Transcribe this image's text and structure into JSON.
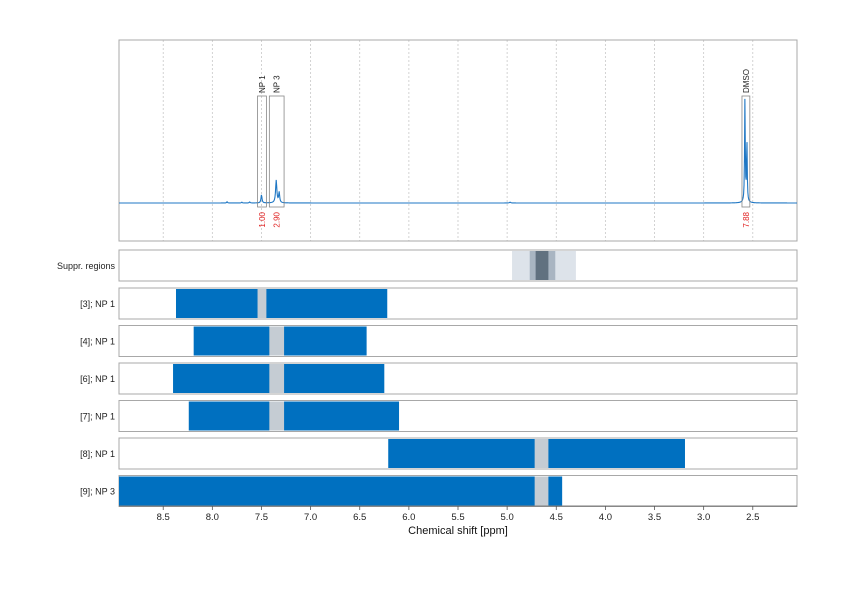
{
  "chart_data": {
    "type": "nmr-spectrum",
    "xlabel": "Chemical shift [ppm]",
    "xlim": [
      8.95,
      2.05
    ],
    "x_ticks": [
      8.5,
      8.0,
      7.5,
      7.0,
      6.5,
      6.0,
      5.5,
      5.0,
      4.5,
      4.0,
      3.5,
      3.0,
      2.5
    ],
    "x_tick_labels": [
      "8.5",
      "8.0",
      "7.5",
      "7.0",
      "6.5",
      "6.0",
      "5.5",
      "5.0",
      "4.5",
      "4.0",
      "3.5",
      "3.0",
      "2.5"
    ],
    "grid": true,
    "spectrum": {
      "baseline": 0.0,
      "peaks": [
        {
          "ppm": 7.5,
          "height": 0.08,
          "width": 0.012
        },
        {
          "ppm": 7.35,
          "height": 0.22,
          "width": 0.015
        },
        {
          "ppm": 7.32,
          "height": 0.1,
          "width": 0.012
        },
        {
          "ppm": 7.85,
          "height": 0.012,
          "width": 0.01
        },
        {
          "ppm": 7.7,
          "height": 0.008,
          "width": 0.01
        },
        {
          "ppm": 7.62,
          "height": 0.01,
          "width": 0.01
        },
        {
          "ppm": 4.97,
          "height": 0.008,
          "width": 0.015
        },
        {
          "ppm": 2.58,
          "height": 1.0,
          "width": 0.008
        },
        {
          "ppm": 2.56,
          "height": 0.6,
          "width": 0.008
        }
      ]
    },
    "regions": [
      {
        "label": "NP 1",
        "from": 7.54,
        "to": 7.45,
        "integral": "1.00"
      },
      {
        "label": "NP 3",
        "from": 7.42,
        "to": 7.27,
        "integral": "2.90"
      },
      {
        "label": "DMSO",
        "from": 2.61,
        "to": 2.53,
        "integral": "7.88"
      }
    ],
    "suppression_label": "Suppr. regions",
    "suppression_regions": [
      {
        "from": 4.95,
        "to": 4.3,
        "level": "light"
      },
      {
        "from": 4.77,
        "to": 4.51,
        "level": "medium"
      },
      {
        "from": 4.71,
        "to": 4.58,
        "level": "dark"
      }
    ],
    "rows": [
      {
        "label": "[3]; NP 1",
        "bars": [
          {
            "from": 8.37,
            "to": 6.22
          }
        ],
        "gaps": [
          {
            "from": 7.54,
            "to": 7.45
          }
        ]
      },
      {
        "label": "[4]; NP 1",
        "bars": [
          {
            "from": 8.19,
            "to": 6.43
          }
        ],
        "gaps": [
          {
            "from": 7.42,
            "to": 7.27
          }
        ]
      },
      {
        "label": "[6]; NP 1",
        "bars": [
          {
            "from": 8.4,
            "to": 6.25
          }
        ],
        "gaps": [
          {
            "from": 7.42,
            "to": 7.27
          }
        ]
      },
      {
        "label": "[7]; NP 1",
        "bars": [
          {
            "from": 8.24,
            "to": 6.1
          }
        ],
        "gaps": [
          {
            "from": 7.42,
            "to": 7.27
          }
        ]
      },
      {
        "label": "[8]; NP 1",
        "bars": [
          {
            "from": 6.21,
            "to": 3.19
          }
        ],
        "gaps": [
          {
            "from": 4.72,
            "to": 4.58
          }
        ]
      },
      {
        "label": "[9]; NP 3",
        "bars": [
          {
            "from": 8.95,
            "to": 4.44
          }
        ],
        "gaps": [
          {
            "from": 4.72,
            "to": 4.58
          }
        ]
      }
    ],
    "colors": {
      "spectrum": "#1f77c4",
      "bar": "#0070c0",
      "gap": "#c5ccd3",
      "supp_light": "#dde3ea",
      "supp_medium": "#a9b5c2",
      "supp_dark": "#617180",
      "integral": "#e02020",
      "border": "#a8a8a8"
    }
  }
}
